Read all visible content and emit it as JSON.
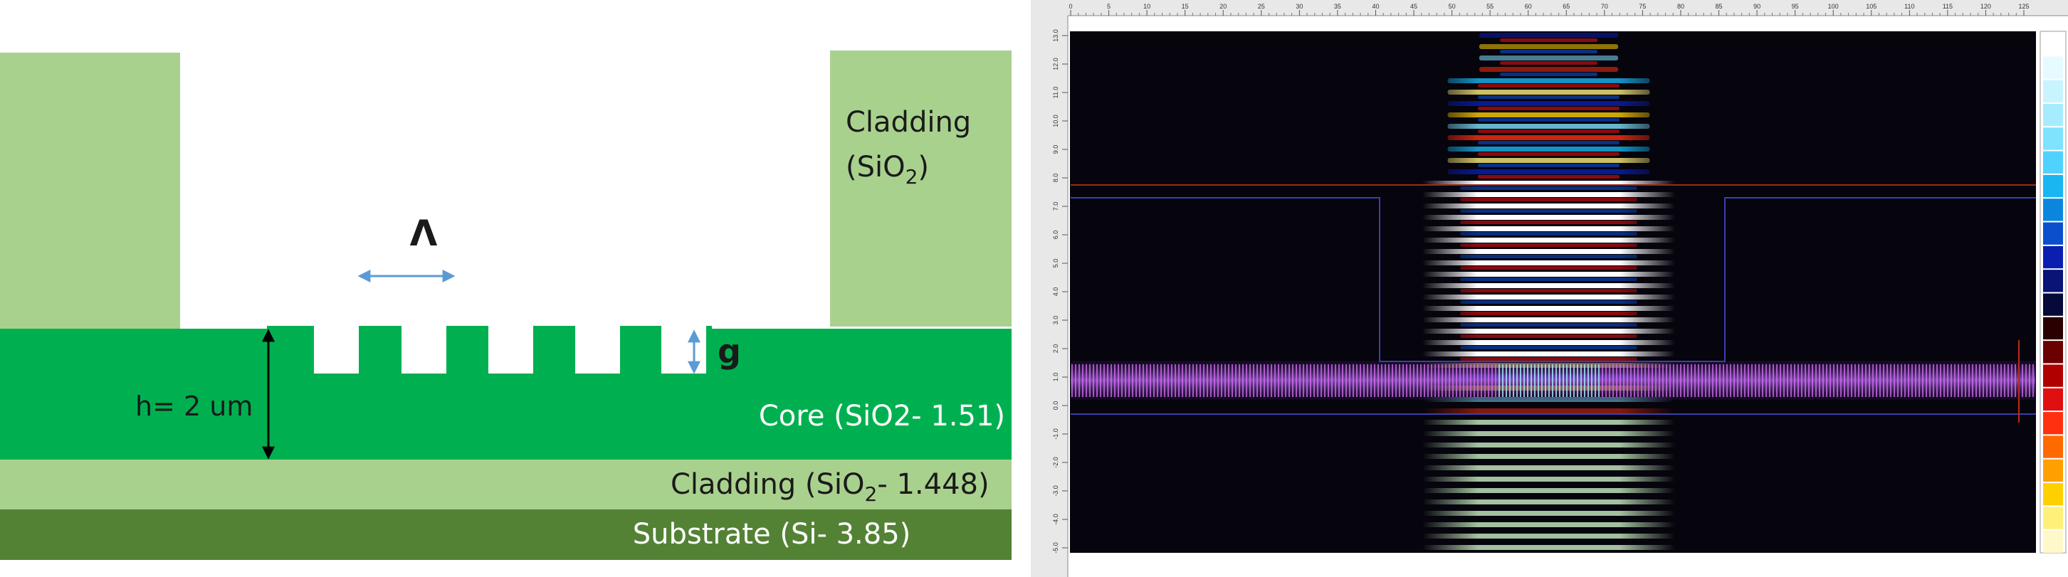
{
  "diagram": {
    "cladding_top": {
      "line1": "Cladding",
      "line2_main": "(SiO",
      "line2_sub": "2",
      "line2_end": ")"
    },
    "period_symbol": "Λ",
    "gap_label": "g",
    "height_label": "h= 2 um",
    "core_label": "Core (SiO2- 1.51)",
    "lower_cladding": {
      "main": "Cladding (SiO",
      "sub": "2",
      "end": "- 1.448)"
    },
    "substrate_label": "Substrate (Si- 3.85)",
    "colors": {
      "cladding": "#a9d18e",
      "core": "#00b050",
      "substrate": "#548235",
      "arrow_blue": "#5b9bd5",
      "arrow_black": "#000000"
    }
  },
  "simulation": {
    "x_ticks": [
      "0",
      "5",
      "10",
      "15",
      "20",
      "25",
      "30",
      "35",
      "40",
      "45",
      "50",
      "55",
      "60",
      "65",
      "70",
      "75",
      "80",
      "85",
      "90",
      "95",
      "100",
      "105",
      "110",
      "115",
      "120",
      "125"
    ],
    "y_ticks": [
      "13.0",
      "12.0",
      "11.0",
      "10.0",
      "9.0",
      "8.0",
      "7.0",
      "6.0",
      "5.0",
      "4.0",
      "3.0",
      "2.0",
      "1.0",
      "0.0",
      "-1.0",
      "-2.0",
      "-3.0",
      "-4.0",
      "-5.0"
    ],
    "colormap": [
      "#ffffff",
      "#e6fbff",
      "#c8f4ff",
      "#a6ecff",
      "#7fe2ff",
      "#4fd2ff",
      "#18b6f2",
      "#0a86de",
      "#0b4fcf",
      "#0a1fb0",
      "#081476",
      "#060a3a",
      "#2a0000",
      "#6a0000",
      "#b00000",
      "#e01010",
      "#ff3010",
      "#ff6a00",
      "#ffa000",
      "#ffd000",
      "#fff07a",
      "#fff8c8"
    ],
    "colors": {
      "background": "#06040d",
      "structure_outline": "#3a3fb0",
      "cladding_line": "#a0281a",
      "ruler": "#e8e8e8"
    }
  }
}
